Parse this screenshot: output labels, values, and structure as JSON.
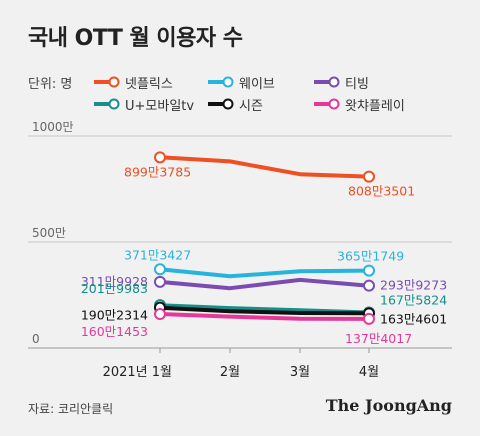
{
  "title": "국내 OTT 월 이용자 수",
  "unit_label": "단위: 명",
  "source": "자료: 코리안클릭",
  "brand": "The JoongAng",
  "chart_data": {
    "type": "line",
    "x": [
      "2021년 1월",
      "2월",
      "3월",
      "4월"
    ],
    "yticks": [
      "1000만",
      "500만",
      "0"
    ],
    "ylim": [
      0,
      1000
    ],
    "grid": true,
    "legend_position": "top",
    "series": [
      {
        "name": "넷플릭스",
        "color": "#f04e23",
        "values": [
          899.3785,
          880,
          820,
          808.3501
        ],
        "start_label": "899만3785",
        "end_label": "808만3501"
      },
      {
        "name": "웨이브",
        "color": "#27b4dc",
        "values": [
          371.3427,
          338,
          362,
          365.1749
        ],
        "start_label": "371만3427",
        "end_label": "365만1749"
      },
      {
        "name": "티빙",
        "color": "#7a4bb0",
        "values": [
          311.9928,
          282,
          321,
          293.9273
        ],
        "start_label": "311만9928",
        "end_label": "293만9273"
      },
      {
        "name": "U+모바일tv",
        "color": "#168e8a",
        "values": [
          201.9983,
          188,
          178,
          167.5824
        ],
        "start_label": "201만9983",
        "end_label": "167만5824"
      },
      {
        "name": "시즌",
        "color": "#111111",
        "values": [
          190.2314,
          173,
          165,
          163.4601
        ],
        "start_label": "190만2314",
        "end_label": "163만4601"
      },
      {
        "name": "왓챠플레이",
        "color": "#e5399a",
        "values": [
          160.1453,
          148,
          138,
          137.4017
        ],
        "start_label": "160만1453",
        "end_label": "137만4017"
      }
    ]
  }
}
